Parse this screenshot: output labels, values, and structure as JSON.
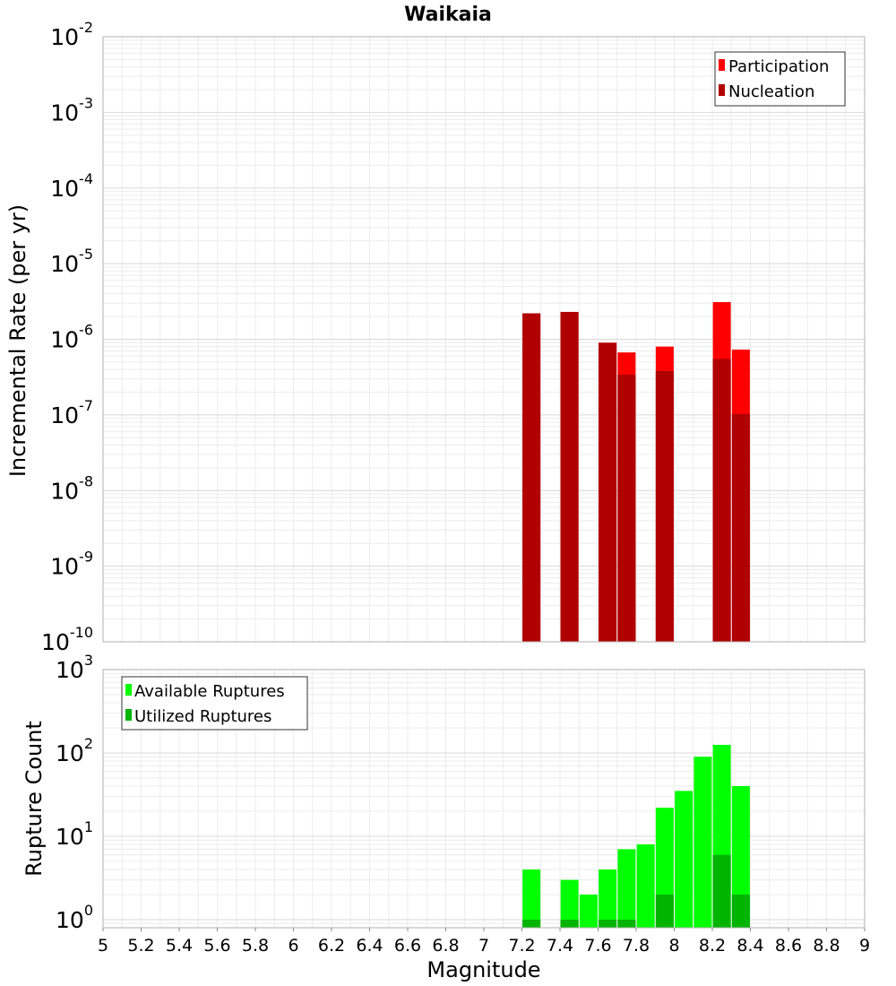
{
  "chart_data": [
    {
      "type": "bar",
      "title": "Waikaia",
      "xlabel": "",
      "ylabel": "Incremental Rate (per yr)",
      "yscale": "log",
      "ylim": [
        1e-10,
        0.01
      ],
      "xlim": [
        5,
        9
      ],
      "y_ticks": [
        {
          "base": "10",
          "exp": "-10"
        },
        {
          "base": "10",
          "exp": "-9"
        },
        {
          "base": "10",
          "exp": "-8"
        },
        {
          "base": "10",
          "exp": "-7"
        },
        {
          "base": "10",
          "exp": "-6"
        },
        {
          "base": "10",
          "exp": "-5"
        },
        {
          "base": "10",
          "exp": "-4"
        },
        {
          "base": "10",
          "exp": "-3"
        },
        {
          "base": "10",
          "exp": "-2"
        }
      ],
      "grid": true,
      "legend_position": "top-right",
      "series": [
        {
          "name": "Participation",
          "color": "#ff0000",
          "x": [
            7.25,
            7.45,
            7.65,
            7.75,
            7.95,
            8.25,
            8.35
          ],
          "values": [
            2.2e-06,
            2.3e-06,
            9e-07,
            6.7e-07,
            8e-07,
            3.1e-06,
            7.3e-07
          ]
        },
        {
          "name": "Nucleation",
          "color": "#b00000",
          "x": [
            7.25,
            7.45,
            7.65,
            7.75,
            7.95,
            8.25,
            8.35
          ],
          "values": [
            2.2e-06,
            2.3e-06,
            9e-07,
            3.4e-07,
            3.8e-07,
            5.5e-07,
            1.03e-07
          ]
        }
      ]
    },
    {
      "type": "bar",
      "title": "",
      "xlabel": "Magnitude",
      "ylabel": "Rupture Count",
      "yscale": "log",
      "ylim": [
        0.8,
        1000
      ],
      "xlim": [
        5,
        9
      ],
      "x_ticks": [
        "5",
        "5.2",
        "5.4",
        "5.6",
        "5.8",
        "6",
        "6.2",
        "6.4",
        "6.6",
        "6.8",
        "7",
        "7.2",
        "7.4",
        "7.6",
        "7.8",
        "8",
        "8.2",
        "8.4",
        "8.6",
        "8.8",
        "9"
      ],
      "y_ticks": [
        {
          "base": "10",
          "exp": "0"
        },
        {
          "base": "10",
          "exp": "1"
        },
        {
          "base": "10",
          "exp": "2"
        },
        {
          "base": "10",
          "exp": "3"
        }
      ],
      "grid": true,
      "legend_position": "top-left",
      "series": [
        {
          "name": "Available Ruptures",
          "color": "#00ff00",
          "x": [
            7.25,
            7.45,
            7.55,
            7.65,
            7.75,
            7.85,
            7.95,
            8.05,
            8.15,
            8.25,
            8.35
          ],
          "values": [
            4,
            3,
            2,
            4,
            7,
            8,
            22,
            35,
            90,
            125,
            40
          ]
        },
        {
          "name": "Utilized Ruptures",
          "color": "#00b400",
          "x": [
            7.25,
            7.45,
            7.55,
            7.65,
            7.75,
            7.85,
            7.95,
            8.05,
            8.15,
            8.25,
            8.35
          ],
          "values": [
            1,
            1,
            0,
            1,
            1,
            0,
            2,
            0,
            0,
            6,
            2
          ]
        }
      ]
    }
  ]
}
